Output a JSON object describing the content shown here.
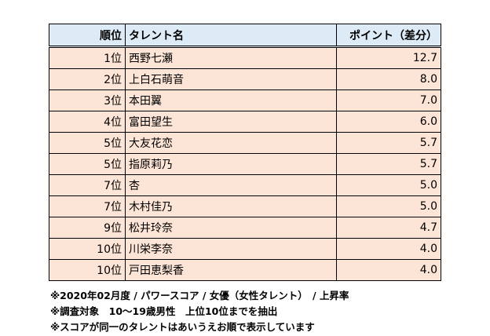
{
  "table": {
    "headers": [
      "順位",
      "タレント名",
      "ポイント（差分）"
    ],
    "rows": [
      {
        "rank": "1位",
        "name": "西野七瀬",
        "point": "12.7"
      },
      {
        "rank": "2位",
        "name": "上白石萌音",
        "point": "8.0"
      },
      {
        "rank": "3位",
        "name": "本田翼",
        "point": "7.0"
      },
      {
        "rank": "4位",
        "name": "富田望生",
        "point": "6.0"
      },
      {
        "rank": "5位",
        "name": "大友花恋",
        "point": "5.7"
      },
      {
        "rank": "5位",
        "name": "指原莉乃",
        "point": "5.7"
      },
      {
        "rank": "7位",
        "name": "杏",
        "point": "5.0"
      },
      {
        "rank": "7位",
        "name": "木村佳乃",
        "point": "5.0"
      },
      {
        "rank": "9位",
        "name": "松井玲奈",
        "point": "4.7"
      },
      {
        "rank": "10位",
        "name": "川栄李奈",
        "point": "4.0"
      },
      {
        "rank": "10位",
        "name": "戸田恵梨香",
        "point": "4.0"
      }
    ]
  },
  "notes": [
    "※2020年02月度 / パワースコア / 女優（女性タレント）　/ 上昇率",
    "※調査対象　10～19歳男性　上位10位までを抽出",
    "※スコアが同一のタレントはあいうえお順で表示しています"
  ],
  "colors": {
    "header_bg": "#DDEBF7",
    "row_bg": "#FCE4D6"
  }
}
